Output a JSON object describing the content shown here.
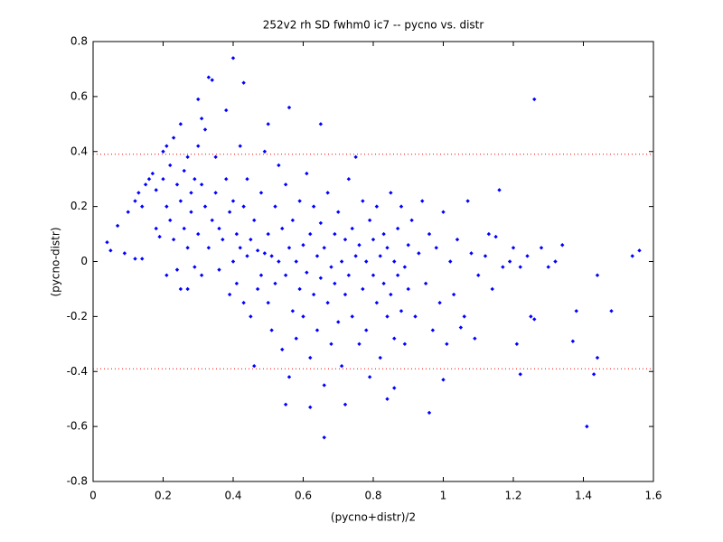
{
  "chart_data": {
    "type": "scatter",
    "title": "252v2 rh SD fwhm0 ic7 -- pycno vs. distr",
    "xlabel": "(pycno+distr)/2",
    "ylabel": "(pycno-distr)",
    "color": "#0000ff",
    "hlines": [
      0.39,
      -0.39
    ],
    "hline_color": "#ff0000",
    "xlim": [
      0,
      1.6
    ],
    "ylim": [
      -0.8,
      0.8
    ],
    "xticks": [
      0,
      0.2,
      0.4,
      0.6,
      0.8,
      1,
      1.2,
      1.4,
      1.6
    ],
    "yticks": [
      -0.8,
      -0.6,
      -0.4,
      -0.2,
      0,
      0.2,
      0.4,
      0.6,
      0.8
    ],
    "x": [
      0.4,
      0.33,
      0.34,
      0.43,
      1.26,
      0.66,
      1.41,
      0.96,
      1.56,
      1.54,
      1.48,
      1.44,
      1.43,
      1.44,
      1.37,
      1.38,
      1.34,
      1.16,
      1.22,
      1.21,
      0.04,
      0.05,
      0.07,
      0.09,
      0.12,
      0.14,
      0.3,
      0.31,
      0.5,
      0.56,
      0.65,
      1.07,
      1.05,
      1.0,
      0.84,
      0.86,
      0.72,
      0.62,
      0.55,
      0.1,
      0.12,
      0.13,
      0.14,
      0.15,
      0.16,
      0.17,
      0.18,
      0.18,
      0.19,
      0.2,
      0.2,
      0.21,
      0.21,
      0.21,
      0.22,
      0.22,
      0.23,
      0.23,
      0.24,
      0.24,
      0.25,
      0.25,
      0.25,
      0.26,
      0.26,
      0.27,
      0.27,
      0.27,
      0.28,
      0.28,
      0.29,
      0.29,
      0.3,
      0.3,
      0.31,
      0.31,
      0.32,
      0.32,
      0.33,
      0.34,
      0.35,
      0.35,
      0.36,
      0.36,
      0.37,
      0.38,
      0.38,
      0.39,
      0.39,
      0.4,
      0.4,
      0.41,
      0.41,
      0.42,
      0.42,
      0.43,
      0.43,
      0.44,
      0.44,
      0.45,
      0.45,
      0.46,
      0.46,
      0.47,
      0.47,
      0.48,
      0.48,
      0.49,
      0.49,
      0.5,
      0.5,
      0.51,
      0.51,
      0.52,
      0.52,
      0.53,
      0.53,
      0.54,
      0.54,
      0.55,
      0.55,
      0.56,
      0.56,
      0.57,
      0.57,
      0.58,
      0.58,
      0.59,
      0.59,
      0.6,
      0.6,
      0.61,
      0.61,
      0.62,
      0.62,
      0.63,
      0.63,
      0.64,
      0.64,
      0.65,
      0.65,
      0.66,
      0.66,
      0.67,
      0.67,
      0.68,
      0.68,
      0.69,
      0.69,
      0.7,
      0.7,
      0.71,
      0.71,
      0.72,
      0.72,
      0.73,
      0.73,
      0.74,
      0.74,
      0.75,
      0.75,
      0.76,
      0.76,
      0.77,
      0.77,
      0.78,
      0.78,
      0.79,
      0.79,
      0.8,
      0.8,
      0.81,
      0.81,
      0.82,
      0.82,
      0.83,
      0.83,
      0.84,
      0.84,
      0.85,
      0.85,
      0.86,
      0.86,
      0.87,
      0.87,
      0.88,
      0.88,
      0.89,
      0.89,
      0.9,
      0.9,
      0.91,
      0.92,
      0.93,
      0.94,
      0.95,
      0.96,
      0.97,
      0.98,
      0.99,
      1.0,
      1.01,
      1.02,
      1.03,
      1.04,
      1.06,
      1.08,
      1.09,
      1.1,
      1.12,
      1.13,
      1.14,
      1.15,
      1.17,
      1.19,
      1.2,
      1.22,
      1.24,
      1.25,
      1.26,
      1.28,
      1.3,
      1.32
    ],
    "values": [
      0.74,
      0.67,
      0.66,
      0.65,
      0.59,
      -0.64,
      -0.6,
      -0.55,
      0.04,
      0.02,
      -0.18,
      -0.05,
      -0.41,
      -0.35,
      -0.29,
      -0.18,
      0.06,
      0.26,
      -0.41,
      -0.3,
      0.07,
      0.04,
      0.13,
      0.03,
      0.01,
      0.01,
      0.59,
      0.52,
      0.5,
      0.56,
      0.5,
      0.22,
      -0.24,
      -0.43,
      -0.5,
      -0.46,
      -0.52,
      -0.53,
      -0.52,
      0.18,
      0.22,
      0.25,
      0.2,
      0.28,
      0.3,
      0.32,
      0.12,
      0.26,
      0.09,
      0.4,
      0.3,
      0.42,
      0.2,
      -0.05,
      0.35,
      0.15,
      0.45,
      0.08,
      0.28,
      -0.03,
      0.5,
      0.22,
      -0.1,
      0.33,
      0.12,
      0.38,
      0.05,
      -0.1,
      0.25,
      0.18,
      0.3,
      -0.02,
      0.42,
      0.1,
      0.28,
      -0.05,
      0.2,
      0.48,
      0.05,
      0.15,
      0.38,
      0.25,
      -0.03,
      0.12,
      0.08,
      0.55,
      0.3,
      -0.12,
      0.18,
      0.0,
      0.22,
      -0.08,
      0.1,
      0.42,
      0.05,
      -0.15,
      0.2,
      0.02,
      0.3,
      -0.2,
      0.08,
      -0.38,
      0.15,
      0.04,
      -0.1,
      0.25,
      -0.05,
      0.03,
      0.4,
      -0.15,
      0.1,
      -0.25,
      0.02,
      0.2,
      -0.08,
      0.35,
      0.0,
      -0.32,
      0.12,
      -0.05,
      0.28,
      -0.42,
      0.05,
      -0.18,
      0.15,
      0.0,
      -0.28,
      0.22,
      -0.1,
      0.06,
      -0.2,
      0.32,
      -0.04,
      -0.35,
      0.1,
      -0.12,
      0.2,
      0.02,
      -0.25,
      0.14,
      -0.06,
      -0.45,
      0.05,
      0.25,
      -0.15,
      -0.02,
      -0.3,
      0.1,
      -0.08,
      0.18,
      -0.22,
      0.0,
      -0.38,
      0.08,
      -0.12,
      0.3,
      -0.05,
      -0.2,
      0.12,
      0.38,
      0.02,
      -0.3,
      0.06,
      -0.1,
      0.22,
      0.0,
      -0.25,
      0.15,
      -0.42,
      -0.05,
      0.08,
      -0.15,
      0.2,
      0.02,
      -0.35,
      0.1,
      -0.08,
      -0.2,
      0.05,
      0.25,
      -0.12,
      0.0,
      -0.28,
      0.12,
      -0.05,
      0.2,
      -0.18,
      -0.02,
      -0.3,
      0.06,
      -0.1,
      0.15,
      -0.2,
      0.03,
      0.22,
      -0.08,
      0.1,
      -0.25,
      0.05,
      -0.15,
      0.18,
      -0.3,
      0.0,
      -0.12,
      0.08,
      -0.2,
      0.03,
      -0.28,
      -0.05,
      0.02,
      0.1,
      -0.1,
      0.09,
      -0.02,
      0.0,
      0.05,
      -0.02,
      0.02,
      -0.2,
      -0.21,
      0.05,
      -0.02,
      0.0
    ]
  }
}
